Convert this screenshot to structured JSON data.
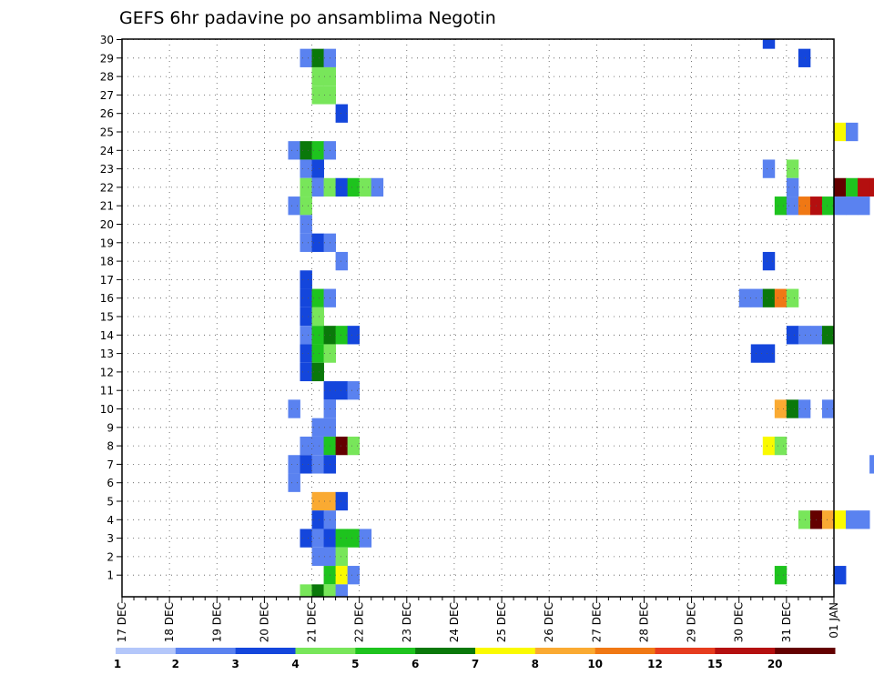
{
  "chart_data": {
    "type": "heatmap",
    "title": "GEFS 6hr padavine po ansamblima Negotin",
    "xlabel": "",
    "ylabel": "",
    "x_ticks": [
      "17 DEC",
      "18 DEC",
      "19 DEC",
      "20 DEC",
      "21 DEC",
      "22 DEC",
      "23 DEC",
      "24 DEC",
      "25 DEC",
      "26 DEC",
      "27 DEC",
      "28 DEC",
      "29 DEC",
      "30 DEC",
      "31 DEC",
      "01 JAN"
    ],
    "y_ticks": [
      "1",
      "2",
      "3",
      "4",
      "5",
      "6",
      "7",
      "8",
      "9",
      "10",
      "11",
      "12",
      "13",
      "14",
      "15",
      "16",
      "17",
      "18",
      "19",
      "20",
      "21",
      "22",
      "23",
      "24",
      "25",
      "26",
      "27",
      "28",
      "29",
      "30"
    ],
    "xlim_days": [
      0,
      15
    ],
    "ylim": [
      0,
      30
    ],
    "x_step_hours": 6,
    "grid": true,
    "legend_position": "bottom",
    "legend": [
      {
        "label": "1",
        "color": "#b4c7fa"
      },
      {
        "label": "2",
        "color": "#5a82f0"
      },
      {
        "label": "3",
        "color": "#1446dc"
      },
      {
        "label": "4",
        "color": "#78e65a"
      },
      {
        "label": "5",
        "color": "#1ec31e"
      },
      {
        "label": "6",
        "color": "#0a780a"
      },
      {
        "label": "7",
        "color": "#fafa00"
      },
      {
        "label": "8",
        "color": "#faaa32"
      },
      {
        "label": "10",
        "color": "#f07814"
      },
      {
        "label": "12",
        "color": "#e63c1e"
      },
      {
        "label": "15",
        "color": "#b40f0f"
      },
      {
        "label": "20",
        "color": "#640000"
      }
    ],
    "cells": [
      {
        "member": 30,
        "segs": [
          [
            13.5,
            [
              2
            ]
          ],
          [
            16.0,
            [
              1
            ]
          ],
          [
            16.5,
            [
              1
            ]
          ]
        ]
      },
      {
        "member": 29,
        "segs": [
          [
            3.75,
            [
              1,
              5,
              1
            ]
          ],
          [
            14.25,
            [
              2
            ]
          ]
        ]
      },
      {
        "member": 28,
        "segs": [
          [
            4.0,
            [
              3,
              3
            ]
          ]
        ]
      },
      {
        "member": 27,
        "segs": [
          [
            4.0,
            [
              3,
              3
            ]
          ]
        ]
      },
      {
        "member": 26,
        "segs": [
          [
            4.5,
            [
              2
            ]
          ]
        ]
      },
      {
        "member": 25,
        "segs": [
          [
            15.0,
            [
              6,
              1
            ]
          ]
        ]
      },
      {
        "member": 24,
        "segs": [
          [
            3.5,
            [
              1,
              5,
              4,
              1
            ]
          ]
        ]
      },
      {
        "member": 23,
        "segs": [
          [
            3.75,
            [
              1,
              2
            ]
          ],
          [
            13.5,
            [
              1
            ]
          ],
          [
            14.0,
            [
              3
            ]
          ]
        ]
      },
      {
        "member": 22,
        "segs": [
          [
            3.75,
            [
              3,
              1,
              3,
              2,
              4,
              3,
              1
            ]
          ],
          [
            14.0,
            [
              1
            ]
          ],
          [
            15.0,
            [
              11,
              4,
              10,
              10
            ]
          ],
          [
            16.25,
            [
              10,
              5,
              2,
              6,
              1
            ]
          ]
        ]
      },
      {
        "member": 21,
        "segs": [
          [
            3.5,
            [
              1,
              3
            ]
          ],
          [
            13.75,
            [
              4,
              1,
              8,
              10,
              4,
              1,
              1,
              1
            ]
          ]
        ]
      },
      {
        "member": 20,
        "segs": [
          [
            3.75,
            [
              1
            ]
          ]
        ]
      },
      {
        "member": 19,
        "segs": [
          [
            3.75,
            [
              1,
              2,
              1
            ]
          ]
        ]
      },
      {
        "member": 18,
        "segs": [
          [
            4.5,
            [
              1
            ]
          ],
          [
            13.5,
            [
              2
            ]
          ]
        ]
      },
      {
        "member": 17,
        "segs": [
          [
            3.75,
            [
              2
            ]
          ]
        ]
      },
      {
        "member": 16,
        "segs": [
          [
            3.75,
            [
              2,
              4,
              1
            ]
          ],
          [
            13.0,
            [
              1,
              1,
              5,
              8,
              3
            ]
          ],
          [
            16.75,
            [
              2,
              7,
              4,
              4,
              1
            ]
          ]
        ]
      },
      {
        "member": 15,
        "segs": [
          [
            3.75,
            [
              2,
              3
            ]
          ]
        ]
      },
      {
        "member": 14,
        "segs": [
          [
            3.75,
            [
              1,
              4,
              5,
              4,
              2
            ]
          ],
          [
            14.0,
            [
              2,
              1,
              1,
              5
            ]
          ]
        ]
      },
      {
        "member": 13,
        "segs": [
          [
            3.75,
            [
              2,
              4,
              3
            ]
          ],
          [
            13.25,
            [
              2,
              2
            ]
          ]
        ]
      },
      {
        "member": 12,
        "segs": [
          [
            3.75,
            [
              2,
              5
            ]
          ]
        ]
      },
      {
        "member": 11,
        "segs": [
          [
            4.25,
            [
              2,
              2,
              1
            ]
          ]
        ]
      },
      {
        "member": 10,
        "segs": [
          [
            3.5,
            [
              1
            ]
          ],
          [
            4.25,
            [
              1
            ]
          ],
          [
            13.75,
            [
              7,
              5,
              1
            ]
          ],
          [
            14.75,
            [
              1
            ]
          ]
        ]
      },
      {
        "member": 9,
        "segs": [
          [
            4.0,
            [
              1,
              1
            ]
          ],
          [
            16.0,
            [
              1
            ]
          ],
          [
            16.5,
            [
              1
            ]
          ]
        ]
      },
      {
        "member": 8,
        "segs": [
          [
            3.75,
            [
              1,
              1,
              4,
              11,
              3
            ]
          ],
          [
            13.5,
            [
              6,
              3
            ]
          ]
        ]
      },
      {
        "member": 7,
        "segs": [
          [
            3.5,
            [
              1,
              2,
              1,
              2
            ]
          ],
          [
            15.75,
            [
              1
            ]
          ]
        ]
      },
      {
        "member": 6,
        "segs": [
          [
            3.5,
            [
              1
            ]
          ]
        ]
      },
      {
        "member": 5,
        "segs": [
          [
            4.0,
            [
              7,
              7,
              2
            ]
          ]
        ]
      },
      {
        "member": 4,
        "segs": [
          [
            4.0,
            [
              2,
              1
            ]
          ],
          [
            14.25,
            [
              3,
              11,
              7,
              6,
              1,
              1
            ]
          ]
        ]
      },
      {
        "member": 3,
        "segs": [
          [
            3.75,
            [
              2,
              1,
              2,
              4,
              4,
              1
            ]
          ]
        ]
      },
      {
        "member": 2,
        "segs": [
          [
            4.0,
            [
              1,
              1,
              3
            ]
          ],
          [
            16.0,
            [
              7,
              3,
              5,
              2,
              10,
              5,
              1
            ]
          ]
        ]
      },
      {
        "member": 1,
        "segs": [
          [
            4.25,
            [
              4,
              6,
              1
            ]
          ],
          [
            13.75,
            [
              4
            ]
          ],
          [
            15.0,
            [
              2
            ]
          ],
          [
            16.5,
            [
              1
            ]
          ],
          [
            17.5,
            [
              1
            ]
          ]
        ]
      },
      {
        "member": 0,
        "segs": [
          [
            3.75,
            [
              3,
              5,
              3,
              1
            ]
          ]
        ]
      }
    ]
  }
}
